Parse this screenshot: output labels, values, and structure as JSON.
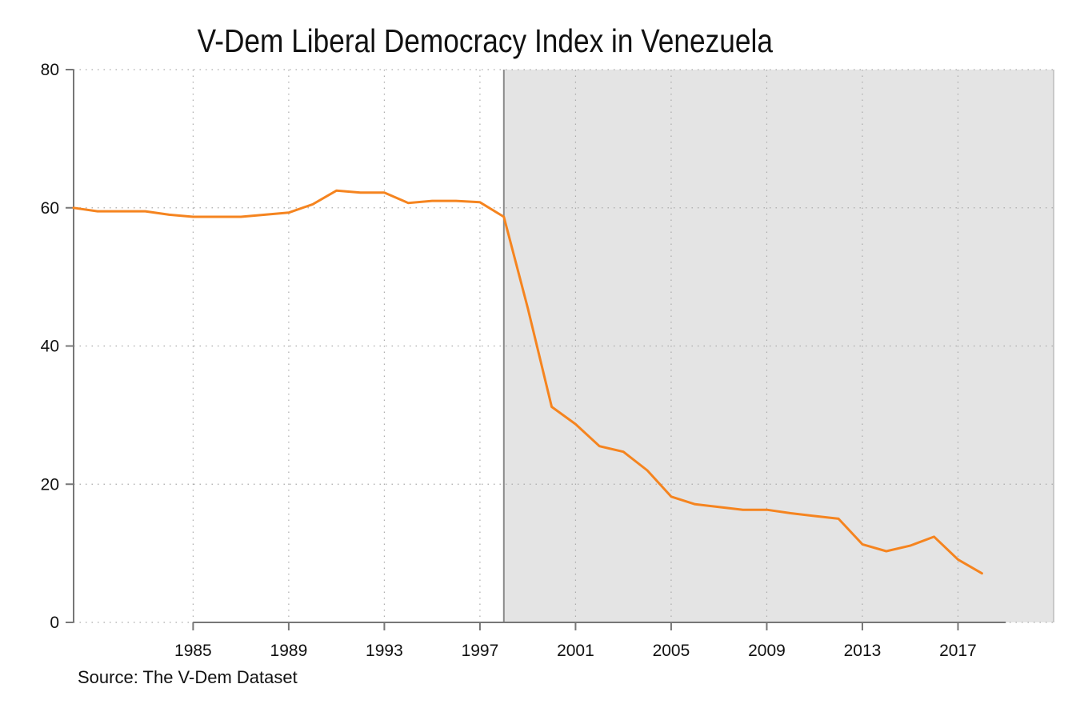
{
  "chart_data": {
    "type": "line",
    "title": "V-Dem Liberal Democracy Index in Venezuela",
    "source": "Source: The V-Dem Dataset",
    "xlabel": "",
    "ylabel": "",
    "xlim": [
      1980,
      2021
    ],
    "ylim": [
      0,
      80
    ],
    "x_ticks": [
      1985,
      1989,
      1993,
      1997,
      2001,
      2005,
      2009,
      2013,
      2017
    ],
    "y_ticks": [
      0,
      20,
      40,
      60,
      80
    ],
    "grid": true,
    "highlight_region": {
      "from": 1998,
      "to": 2021,
      "color": "#e4e4e4"
    },
    "colors": {
      "line": "#f5841f",
      "highlight": "#e4e4e4",
      "axis": "#777777",
      "grid": "#aaaaaa"
    },
    "series": [
      {
        "x": [
          1980,
          1981,
          1982,
          1983,
          1984,
          1985,
          1986,
          1987,
          1988,
          1989,
          1990,
          1991,
          1992,
          1993,
          1994,
          1995,
          1996,
          1997,
          1998,
          1999,
          2000,
          2001,
          2002,
          2003,
          2004,
          2005,
          2006,
          2007,
          2008,
          2009,
          2010,
          2011,
          2012,
          2013,
          2014,
          2015,
          2016,
          2017,
          2018
        ],
        "values": [
          60.0,
          59.5,
          59.5,
          59.5,
          59.0,
          58.7,
          58.7,
          58.7,
          59.0,
          59.3,
          60.5,
          62.5,
          62.2,
          62.2,
          60.7,
          61.0,
          61.0,
          60.8,
          58.7,
          45.5,
          31.2,
          28.7,
          25.5,
          24.7,
          22.0,
          18.2,
          17.1,
          16.7,
          16.3,
          16.3,
          15.8,
          15.4,
          15.0,
          11.3,
          10.3,
          11.1,
          12.4,
          9.1,
          7.1
        ]
      }
    ]
  }
}
